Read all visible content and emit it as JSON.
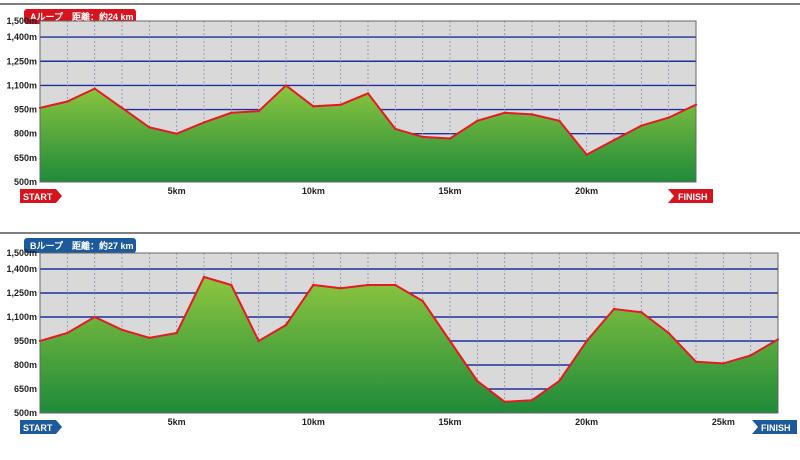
{
  "chart_data": [
    {
      "type": "area",
      "title": "Aループ　距離：約24 km",
      "accent": "#d7141e",
      "x_max_km": 24,
      "xlim": [
        0,
        24
      ],
      "ylim": [
        500,
        1500
      ],
      "y_ticks": [
        500,
        650,
        800,
        950,
        1100,
        1250,
        1400,
        1500
      ],
      "y_tick_labels": [
        "500m",
        "650m",
        "800m",
        "950m",
        "1,100m",
        "1,250m",
        "1,400m",
        "1,500m"
      ],
      "x_ticks": [
        5,
        10,
        15,
        20
      ],
      "x_tick_labels": [
        "5km",
        "10km",
        "15km",
        "20km"
      ],
      "start_label": "START",
      "finish_label": "FINISH",
      "grid": true,
      "x": [
        0,
        1,
        2,
        3,
        4,
        5,
        6,
        7,
        8,
        9,
        10,
        11,
        12,
        13,
        14,
        15,
        16,
        17,
        18,
        19,
        20,
        21,
        22,
        23,
        24
      ],
      "values": [
        960,
        1000,
        1080,
        960,
        840,
        800,
        870,
        930,
        940,
        1100,
        970,
        980,
        1050,
        830,
        780,
        770,
        880,
        930,
        920,
        880,
        670,
        760,
        850,
        900,
        980
      ]
    },
    {
      "type": "area",
      "title": "Bループ　距離：約27 km",
      "accent": "#1d5a9c",
      "x_max_km": 27,
      "xlim": [
        0,
        27
      ],
      "ylim": [
        500,
        1500
      ],
      "y_ticks": [
        500,
        650,
        800,
        950,
        1100,
        1250,
        1400,
        1500
      ],
      "y_tick_labels": [
        "500m",
        "650m",
        "800m",
        "950m",
        "1,100m",
        "1,250m",
        "1,400m",
        "1,500m"
      ],
      "x_ticks": [
        5,
        10,
        15,
        20,
        25
      ],
      "x_tick_labels": [
        "5km",
        "10km",
        "15km",
        "20km",
        "25km"
      ],
      "start_label": "START",
      "finish_label": "FINISH",
      "grid": true,
      "x": [
        0,
        1,
        2,
        3,
        4,
        5,
        6,
        7,
        8,
        9,
        10,
        11,
        12,
        13,
        14,
        15,
        16,
        17,
        18,
        19,
        20,
        21,
        22,
        23,
        24,
        25,
        26,
        27
      ],
      "values": [
        950,
        1000,
        1100,
        1020,
        970,
        1000,
        1350,
        1300,
        950,
        1050,
        1300,
        1280,
        1300,
        1300,
        1200,
        950,
        700,
        570,
        580,
        700,
        950,
        1150,
        1130,
        1000,
        820,
        810,
        860,
        960
      ]
    }
  ]
}
